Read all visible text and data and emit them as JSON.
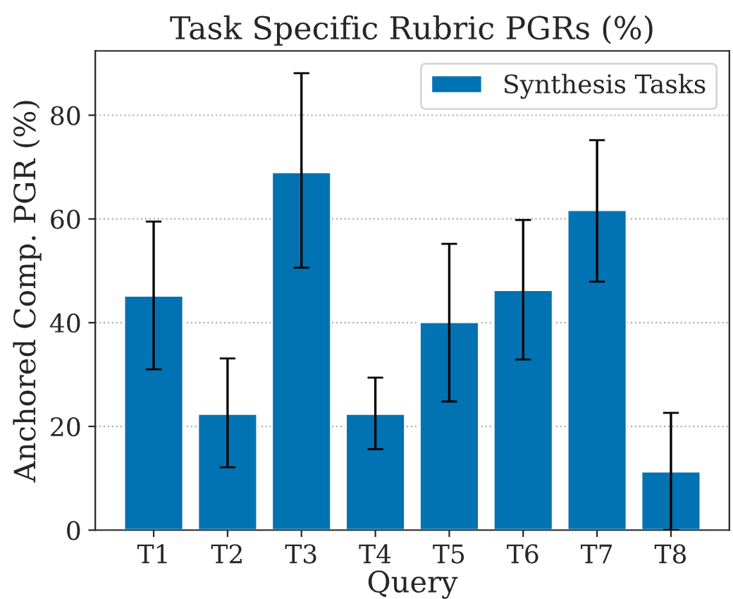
{
  "chart_data": {
    "type": "bar",
    "title": "Task Specific Rubric PGRs (%)",
    "xlabel": "Query",
    "ylabel": "Anchored Comp. PGR (%)",
    "categories": [
      "T1",
      "T2",
      "T3",
      "T4",
      "T5",
      "T6",
      "T7",
      "T8"
    ],
    "series": [
      {
        "name": "Synthesis Tasks",
        "color": "#0173b2",
        "values": [
          45.2,
          22.4,
          69.0,
          22.4,
          40.1,
          46.3,
          61.7,
          11.3
        ],
        "errors": [
          [
            31.0,
            59.5
          ],
          [
            12.1,
            33.1
          ],
          [
            50.6,
            88.1
          ],
          [
            15.6,
            29.4
          ],
          [
            24.8,
            55.2
          ],
          [
            32.9,
            59.8
          ],
          [
            47.9,
            75.2
          ],
          [
            0.0,
            22.6
          ]
        ]
      }
    ],
    "ylim": [
      0,
      92.4
    ],
    "yticks": [
      0,
      20,
      40,
      60,
      80
    ],
    "grid": "y",
    "legend": "top right"
  }
}
